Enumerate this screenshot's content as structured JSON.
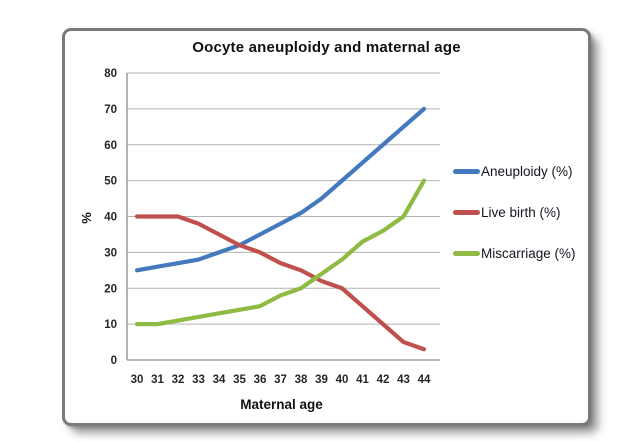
{
  "chart_data": {
    "type": "line",
    "title": "Oocyte aneuploidy and maternal age",
    "xlabel": "Maternal age",
    "ylabel": "%",
    "categories": [
      "30",
      "31",
      "32",
      "33",
      "34",
      "35",
      "36",
      "37",
      "38",
      "39",
      "40",
      "41",
      "42",
      "43",
      "44"
    ],
    "ylim": [
      0,
      80
    ],
    "ytick_step": 10,
    "grid": "horizontal",
    "legend_position": "right",
    "gridline_color": "#b3b3b3",
    "axis_color": "#8c8c8c",
    "text_color": "#262626",
    "series": [
      {
        "name": "Aneuploidy (%)",
        "color": "#4579BE",
        "values": [
          25,
          26,
          27,
          28,
          30,
          32,
          35,
          38,
          41,
          45,
          50,
          55,
          60,
          65,
          70
        ]
      },
      {
        "name": "Live birth (%)",
        "color": "#C0504D",
        "values": [
          40,
          40,
          40,
          38,
          35,
          32,
          30,
          27,
          25,
          22,
          20,
          15,
          10,
          5,
          3
        ]
      },
      {
        "name": "Miscarriage (%)",
        "color": "#8FBA44",
        "values": [
          10,
          10,
          11,
          12,
          13,
          14,
          15,
          18,
          20,
          24,
          28,
          33,
          36,
          40,
          50
        ]
      }
    ]
  }
}
